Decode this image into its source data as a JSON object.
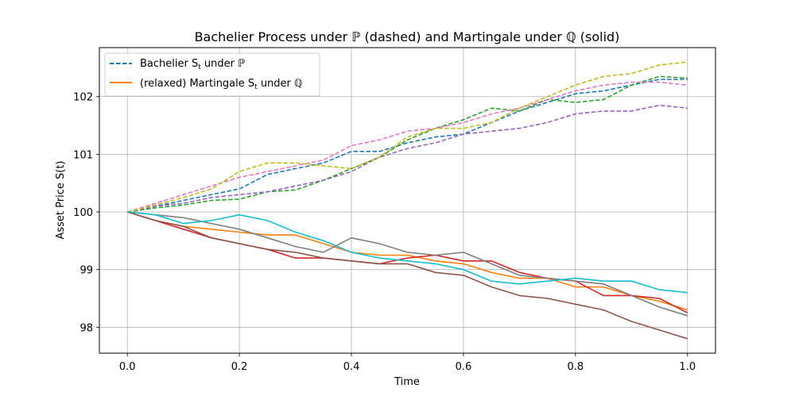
{
  "chart_data": {
    "type": "line",
    "title": "Bachelier Process under ℙ (dashed) and Martingale under ℚ (solid)",
    "xlabel": "Time",
    "ylabel": "Asset Price S(t)",
    "xlim": [
      -0.05,
      1.05
    ],
    "ylim": [
      97.55,
      102.85
    ],
    "xticks": [
      0.0,
      0.2,
      0.4,
      0.6,
      0.8,
      1.0
    ],
    "xtick_labels": [
      "0.0",
      "0.2",
      "0.4",
      "0.6",
      "0.8",
      "1.0"
    ],
    "yticks": [
      98,
      99,
      100,
      101,
      102
    ],
    "ytick_labels": [
      "98",
      "99",
      "100",
      "101",
      "102"
    ],
    "grid": true,
    "legend_position": "top-left",
    "legend": [
      {
        "label": "Bachelier S",
        "sub": "t",
        "suffix": " under ℙ",
        "color": "#1f77b4",
        "style": "dashed"
      },
      {
        "label": "(relaxed) Martingale S",
        "sub": "t",
        "suffix": " under ℚ",
        "color": "#ff7f0e",
        "style": "solid"
      }
    ],
    "series": [
      {
        "color": "#1f77b4",
        "style": "dashed",
        "x": [
          0,
          0.05,
          0.1,
          0.15,
          0.2,
          0.25,
          0.3,
          0.35,
          0.4,
          0.45,
          0.5,
          0.55,
          0.6,
          0.65,
          0.7,
          0.75,
          0.8,
          0.85,
          0.9,
          0.95,
          1.0
        ],
        "y": [
          100,
          100.1,
          100.2,
          100.3,
          100.4,
          100.65,
          100.75,
          100.85,
          101.05,
          101.05,
          101.2,
          101.3,
          101.35,
          101.55,
          101.75,
          101.9,
          102.05,
          102.1,
          102.2,
          102.3,
          102.3
        ]
      },
      {
        "color": "#2ca02c",
        "style": "dashed",
        "x": [
          0,
          0.05,
          0.1,
          0.15,
          0.2,
          0.25,
          0.3,
          0.35,
          0.4,
          0.45,
          0.5,
          0.55,
          0.6,
          0.65,
          0.7,
          0.75,
          0.8,
          0.85,
          0.9,
          0.95,
          1.0
        ],
        "y": [
          100,
          100.07,
          100.12,
          100.2,
          100.22,
          100.35,
          100.38,
          100.55,
          100.75,
          100.95,
          101.25,
          101.45,
          101.6,
          101.8,
          101.75,
          101.95,
          101.9,
          101.95,
          102.2,
          102.35,
          102.32
        ]
      },
      {
        "color": "#9467bd",
        "style": "dashed",
        "x": [
          0,
          0.05,
          0.1,
          0.15,
          0.2,
          0.25,
          0.3,
          0.35,
          0.4,
          0.45,
          0.5,
          0.55,
          0.6,
          0.65,
          0.7,
          0.75,
          0.8,
          0.85,
          0.9,
          0.95,
          1.0
        ],
        "y": [
          100,
          100.1,
          100.15,
          100.25,
          100.3,
          100.35,
          100.45,
          100.55,
          100.7,
          100.95,
          101.1,
          101.2,
          101.35,
          101.4,
          101.45,
          101.55,
          101.7,
          101.75,
          101.75,
          101.85,
          101.8
        ]
      },
      {
        "color": "#e377c2",
        "style": "dashed",
        "x": [
          0,
          0.05,
          0.1,
          0.15,
          0.2,
          0.25,
          0.3,
          0.35,
          0.4,
          0.45,
          0.5,
          0.55,
          0.6,
          0.65,
          0.7,
          0.75,
          0.8,
          0.85,
          0.9,
          0.95,
          1.0
        ],
        "y": [
          100,
          100.15,
          100.3,
          100.45,
          100.6,
          100.7,
          100.8,
          100.9,
          101.15,
          101.25,
          101.4,
          101.45,
          101.55,
          101.7,
          101.8,
          101.95,
          102.1,
          102.2,
          102.25,
          102.25,
          102.2
        ]
      },
      {
        "color": "#bcbd22",
        "style": "dashed",
        "x": [
          0,
          0.05,
          0.1,
          0.15,
          0.2,
          0.25,
          0.3,
          0.35,
          0.4,
          0.45,
          0.5,
          0.55,
          0.6,
          0.65,
          0.7,
          0.75,
          0.8,
          0.85,
          0.9,
          0.95,
          1.0
        ],
        "y": [
          100,
          100.12,
          100.25,
          100.4,
          100.7,
          100.85,
          100.85,
          100.8,
          100.75,
          100.95,
          101.3,
          101.45,
          101.45,
          101.55,
          101.8,
          102.0,
          102.2,
          102.35,
          102.4,
          102.55,
          102.6
        ]
      },
      {
        "color": "#ff7f0e",
        "style": "solid",
        "x": [
          0,
          0.05,
          0.1,
          0.15,
          0.2,
          0.25,
          0.3,
          0.35,
          0.4,
          0.45,
          0.5,
          0.55,
          0.6,
          0.65,
          0.7,
          0.75,
          0.8,
          0.85,
          0.9,
          0.95,
          1.0
        ],
        "y": [
          100,
          99.85,
          99.75,
          99.7,
          99.65,
          99.6,
          99.6,
          99.45,
          99.3,
          99.25,
          99.25,
          99.15,
          99.1,
          98.95,
          98.85,
          98.85,
          98.7,
          98.7,
          98.55,
          98.45,
          98.3
        ]
      },
      {
        "color": "#d62728",
        "style": "solid",
        "x": [
          0,
          0.05,
          0.1,
          0.15,
          0.2,
          0.25,
          0.3,
          0.35,
          0.4,
          0.45,
          0.5,
          0.55,
          0.6,
          0.65,
          0.7,
          0.75,
          0.8,
          0.85,
          0.9,
          0.95,
          1.0
        ],
        "y": [
          100,
          99.85,
          99.7,
          99.55,
          99.45,
          99.35,
          99.2,
          99.2,
          99.15,
          99.1,
          99.2,
          99.25,
          99.15,
          99.15,
          98.95,
          98.85,
          98.8,
          98.55,
          98.55,
          98.5,
          98.25
        ]
      },
      {
        "color": "#8c564b",
        "style": "solid",
        "x": [
          0,
          0.05,
          0.1,
          0.15,
          0.2,
          0.25,
          0.3,
          0.35,
          0.4,
          0.45,
          0.5,
          0.55,
          0.6,
          0.65,
          0.7,
          0.75,
          0.8,
          0.85,
          0.9,
          0.95,
          1.0
        ],
        "y": [
          100,
          99.85,
          99.75,
          99.55,
          99.45,
          99.35,
          99.3,
          99.2,
          99.15,
          99.1,
          99.1,
          98.95,
          98.9,
          98.7,
          98.55,
          98.5,
          98.4,
          98.3,
          98.1,
          97.95,
          97.8
        ]
      },
      {
        "color": "#7f7f7f",
        "style": "solid",
        "x": [
          0,
          0.05,
          0.1,
          0.15,
          0.2,
          0.25,
          0.3,
          0.35,
          0.4,
          0.45,
          0.5,
          0.55,
          0.6,
          0.65,
          0.7,
          0.75,
          0.8,
          0.85,
          0.9,
          0.95,
          1.0
        ],
        "y": [
          100,
          99.95,
          99.9,
          99.8,
          99.7,
          99.55,
          99.4,
          99.3,
          99.55,
          99.45,
          99.3,
          99.25,
          99.3,
          99.1,
          98.9,
          98.85,
          98.8,
          98.75,
          98.55,
          98.35,
          98.2
        ]
      },
      {
        "color": "#17becf",
        "style": "solid",
        "x": [
          0,
          0.05,
          0.1,
          0.15,
          0.2,
          0.25,
          0.3,
          0.35,
          0.4,
          0.45,
          0.5,
          0.55,
          0.6,
          0.65,
          0.7,
          0.75,
          0.8,
          0.85,
          0.9,
          0.95,
          1.0
        ],
        "y": [
          100,
          99.95,
          99.8,
          99.85,
          99.95,
          99.85,
          99.65,
          99.5,
          99.3,
          99.2,
          99.15,
          99.1,
          99.0,
          98.8,
          98.75,
          98.8,
          98.85,
          98.8,
          98.8,
          98.65,
          98.6
        ]
      }
    ]
  }
}
